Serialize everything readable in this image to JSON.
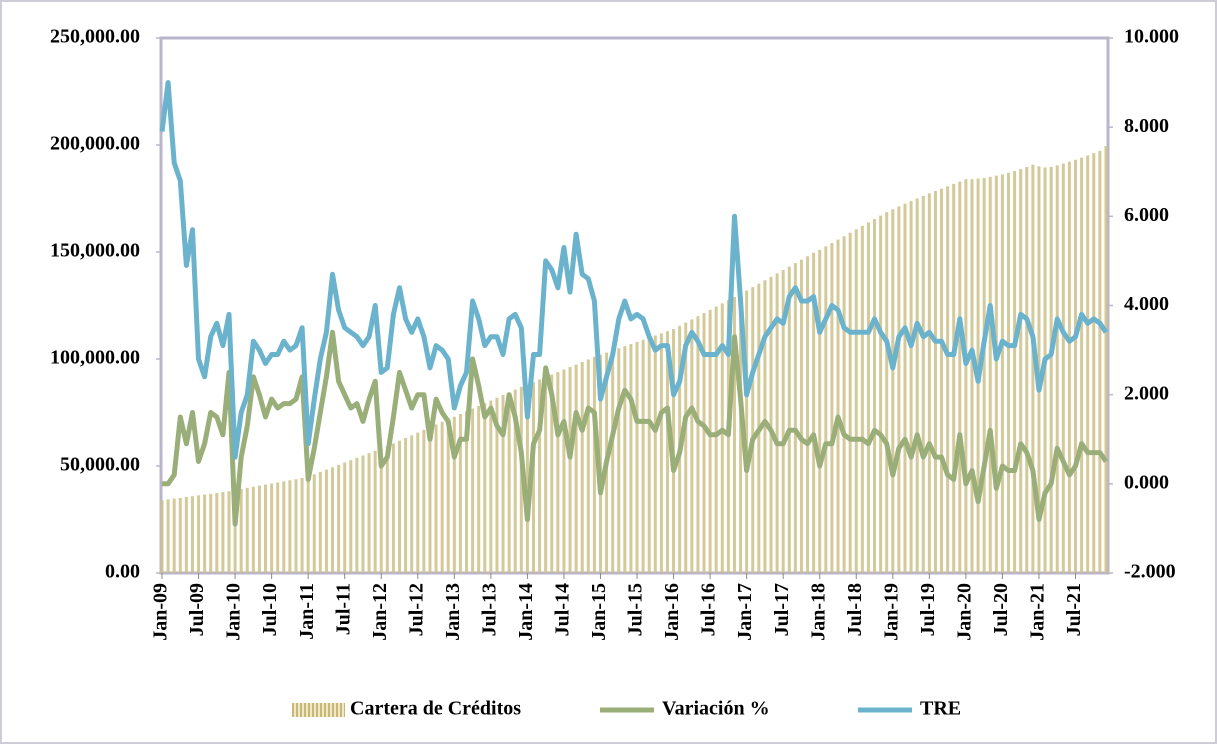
{
  "chart_data": {
    "type": "bar",
    "categories": [
      "Jan-09",
      null,
      null,
      null,
      null,
      null,
      "Jul-09",
      null,
      null,
      null,
      null,
      null,
      "Jan-10",
      null,
      null,
      null,
      null,
      null,
      "Jul-10",
      null,
      null,
      null,
      null,
      null,
      "Jan-11",
      null,
      null,
      null,
      null,
      null,
      "Jul-11",
      null,
      null,
      null,
      null,
      null,
      "Jan-12",
      null,
      null,
      null,
      null,
      null,
      "Jul-12",
      null,
      null,
      null,
      null,
      null,
      "Jan-13",
      null,
      null,
      null,
      null,
      null,
      "Jul-13",
      null,
      null,
      null,
      null,
      null,
      "Jan-14",
      null,
      null,
      null,
      null,
      null,
      "Jul-14",
      null,
      null,
      null,
      null,
      null,
      "Jan-15",
      null,
      null,
      null,
      null,
      null,
      "Jul-15",
      null,
      null,
      null,
      null,
      null,
      "Jan-16",
      null,
      null,
      null,
      null,
      null,
      "Jul-16",
      null,
      null,
      null,
      null,
      null,
      "Jan-17",
      null,
      null,
      null,
      null,
      null,
      "Jul-17",
      null,
      null,
      null,
      null,
      null,
      "Jan-18",
      null,
      null,
      null,
      null,
      null,
      "Jul-18",
      null,
      null,
      null,
      null,
      null,
      "Jan-19",
      null,
      null,
      null,
      null,
      null,
      "Jul-19",
      null,
      null,
      null,
      null,
      null,
      "Jan-20",
      null,
      null,
      null,
      null,
      null,
      "Jul-20",
      null,
      null,
      null,
      null,
      null,
      "Jan-21",
      null,
      null,
      null,
      null,
      null,
      "Jul-21",
      null,
      null,
      null,
      null,
      null
    ],
    "series": [
      {
        "name": "Cartera de Créditos",
        "type": "bar",
        "color": "#cdbf86",
        "values": [
          34000,
          34400,
          34800,
          35100,
          35500,
          35900,
          36300,
          36700,
          37000,
          37400,
          37800,
          38200,
          38800,
          39300,
          39800,
          40300,
          40800,
          41300,
          41800,
          42300,
          42800,
          43300,
          43800,
          44400,
          45000,
          46100,
          47200,
          48300,
          49400,
          50500,
          51600,
          52700,
          53800,
          54900,
          56000,
          57100,
          58000,
          59300,
          60500,
          61800,
          63100,
          64300,
          65600,
          66900,
          68100,
          69400,
          70700,
          72000,
          73000,
          74300,
          75600,
          76800,
          78100,
          79400,
          80600,
          81900,
          83200,
          84400,
          85700,
          87000,
          88000,
          89200,
          90400,
          91500,
          92700,
          93900,
          95100,
          96300,
          97400,
          98600,
          99800,
          101000,
          102000,
          103000,
          104000,
          105000,
          106000,
          107000,
          108000,
          109000,
          110000,
          111000,
          112000,
          113000,
          114000,
          115500,
          117000,
          118500,
          120000,
          121500,
          123000,
          124500,
          126000,
          127500,
          129000,
          130500,
          132000,
          133600,
          135200,
          136800,
          138400,
          140000,
          141600,
          143200,
          144800,
          146400,
          148000,
          149600,
          151000,
          152600,
          154200,
          155800,
          157400,
          159000,
          160600,
          162200,
          163800,
          165400,
          167000,
          168600,
          170000,
          171300,
          172600,
          173800,
          175000,
          176200,
          177400,
          178500,
          179600,
          180700,
          181800,
          182900,
          184000,
          184000,
          184300,
          184600,
          185100,
          185700,
          186300,
          187000,
          187800,
          188700,
          189700,
          190800,
          190000,
          189500,
          189800,
          190500,
          191300,
          192200,
          193100,
          194100,
          195100,
          196200,
          197300,
          199500
        ]
      },
      {
        "name": "Variación %",
        "type": "line",
        "axis": "y2",
        "color": "#9aae7a",
        "values": [
          0.0,
          0.0,
          0.2,
          1.5,
          0.9,
          1.6,
          0.5,
          0.9,
          1.6,
          1.5,
          1.1,
          2.5,
          -0.9,
          0.6,
          1.3,
          2.4,
          2.0,
          1.5,
          1.9,
          1.7,
          1.8,
          1.8,
          1.9,
          2.4,
          0.1,
          0.8,
          1.6,
          2.4,
          3.4,
          2.3,
          2.0,
          1.7,
          1.8,
          1.4,
          1.9,
          2.3,
          0.4,
          0.6,
          1.5,
          2.5,
          2.1,
          1.7,
          2.0,
          2.0,
          1.0,
          1.9,
          1.6,
          1.4,
          0.6,
          1.0,
          1.0,
          2.8,
          2.2,
          1.5,
          1.7,
          1.3,
          1.1,
          2.0,
          1.5,
          0.7,
          -0.8,
          0.9,
          1.2,
          2.6,
          2.0,
          1.1,
          1.4,
          0.6,
          1.6,
          1.2,
          1.7,
          1.6,
          -0.2,
          0.5,
          1.1,
          1.7,
          2.1,
          1.9,
          1.4,
          1.4,
          1.4,
          1.2,
          1.6,
          1.7,
          0.3,
          0.7,
          1.5,
          1.7,
          1.4,
          1.3,
          1.1,
          1.1,
          1.2,
          1.1,
          3.3,
          1.9,
          0.3,
          1.0,
          1.2,
          1.4,
          1.2,
          0.9,
          0.9,
          1.2,
          1.2,
          1.0,
          0.9,
          1.1,
          0.4,
          0.9,
          0.9,
          1.5,
          1.1,
          1.0,
          1.0,
          1.0,
          0.9,
          1.2,
          1.1,
          0.9,
          0.2,
          0.8,
          1.0,
          0.6,
          1.1,
          0.6,
          0.9,
          0.6,
          0.6,
          0.2,
          0.1,
          1.1,
          0.0,
          0.3,
          -0.4,
          0.4,
          1.2,
          -0.1,
          0.4,
          0.3,
          0.3,
          0.9,
          0.7,
          0.3,
          -0.8,
          -0.2,
          0.0,
          0.8,
          0.5,
          0.2,
          0.4,
          0.9,
          0.7,
          0.7,
          0.7,
          0.5
        ]
      },
      {
        "name": "TRE",
        "type": "line",
        "axis": "y2",
        "color": "#6bb3cc",
        "values": [
          7.9,
          9.0,
          7.2,
          6.8,
          4.9,
          5.7,
          2.8,
          2.4,
          3.3,
          3.6,
          3.1,
          3.8,
          0.6,
          1.6,
          2.0,
          3.2,
          3.0,
          2.7,
          2.9,
          2.9,
          3.2,
          3.0,
          3.1,
          3.5,
          0.9,
          1.9,
          2.8,
          3.4,
          4.7,
          3.9,
          3.5,
          3.4,
          3.3,
          3.1,
          3.3,
          4.0,
          2.5,
          2.6,
          3.8,
          4.4,
          3.7,
          3.4,
          3.7,
          3.3,
          2.6,
          3.1,
          3.0,
          2.8,
          1.7,
          2.2,
          2.5,
          4.1,
          3.7,
          3.1,
          3.3,
          3.3,
          2.9,
          3.7,
          3.8,
          3.5,
          1.5,
          2.9,
          2.9,
          5.0,
          4.8,
          4.4,
          5.3,
          4.3,
          5.6,
          4.7,
          4.6,
          4.1,
          1.9,
          2.4,
          2.9,
          3.7,
          4.1,
          3.7,
          3.8,
          3.7,
          3.3,
          3.0,
          3.1,
          3.1,
          2.0,
          2.3,
          3.1,
          3.4,
          3.2,
          2.9,
          2.9,
          2.9,
          3.1,
          2.9,
          6.0,
          4.1,
          2.0,
          2.5,
          2.9,
          3.3,
          3.5,
          3.7,
          3.6,
          4.2,
          4.4,
          4.1,
          4.1,
          4.2,
          3.4,
          3.7,
          4.0,
          3.9,
          3.5,
          3.4,
          3.4,
          3.4,
          3.4,
          3.7,
          3.4,
          3.2,
          2.6,
          3.3,
          3.5,
          3.1,
          3.6,
          3.3,
          3.4,
          3.2,
          3.2,
          2.9,
          2.9,
          3.7,
          2.7,
          3.0,
          2.3,
          3.2,
          4.0,
          2.8,
          3.2,
          3.1,
          3.1,
          3.8,
          3.7,
          3.3,
          2.1,
          2.8,
          2.9,
          3.7,
          3.4,
          3.2,
          3.3,
          3.8,
          3.6,
          3.7,
          3.6,
          3.4
        ]
      }
    ],
    "ylim": [
      0,
      250000
    ],
    "yticks": [
      {
        "value": 0,
        "label": "0.00"
      },
      {
        "value": 50000,
        "label": "50,000.00"
      },
      {
        "value": 100000,
        "label": "100,000.00"
      },
      {
        "value": 150000,
        "label": "150,000.00"
      },
      {
        "value": 200000,
        "label": "200,000.00"
      },
      {
        "value": 250000,
        "label": "250,000.00"
      }
    ],
    "y2lim": [
      -2,
      10
    ],
    "y2ticks": [
      {
        "value": -2,
        "label": "-2.000"
      },
      {
        "value": 0,
        "label": "0.000"
      },
      {
        "value": 2,
        "label": "2.000"
      },
      {
        "value": 4,
        "label": "4.000"
      },
      {
        "value": 6,
        "label": "6.000"
      },
      {
        "value": 8,
        "label": "8.000"
      },
      {
        "value": 10,
        "label": "10.000"
      }
    ],
    "legend": "bottom"
  }
}
